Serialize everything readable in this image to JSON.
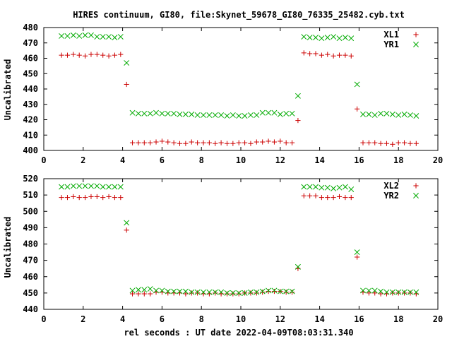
{
  "figure": {
    "title": "HIRES continuum, GI80, file:Skynet_59678_GI80_76335_25482.cyb.txt",
    "xlabel": "rel seconds : UT date 2022-04-09T08:03:31.340"
  },
  "chart_data": [
    {
      "type": "scatter",
      "ylabel": "Uncalibrated",
      "xlim": [
        0,
        20
      ],
      "ylim": [
        400,
        480
      ],
      "xticks": [
        "0",
        "2",
        "4",
        "6",
        "8",
        "10",
        "12",
        "14",
        "16",
        "18",
        "20"
      ],
      "yticks": [
        "400",
        "410",
        "420",
        "430",
        "440",
        "450",
        "460",
        "470",
        "480"
      ],
      "legend_position": "top-right",
      "series": [
        {
          "name": "XL1",
          "marker": "plus",
          "color": "#cc0000",
          "x": [
            0.9,
            1.2,
            1.5,
            1.8,
            2.1,
            2.4,
            2.7,
            3.0,
            3.3,
            3.6,
            3.9,
            4.2,
            4.5,
            4.8,
            5.1,
            5.4,
            5.7,
            6.0,
            6.3,
            6.6,
            6.9,
            7.2,
            7.5,
            7.8,
            8.1,
            8.4,
            8.7,
            9.0,
            9.3,
            9.6,
            9.9,
            10.2,
            10.5,
            10.8,
            11.1,
            11.4,
            11.7,
            12.0,
            12.3,
            12.6,
            12.9,
            13.2,
            13.5,
            13.8,
            14.1,
            14.4,
            14.7,
            15.0,
            15.3,
            15.6,
            15.9,
            16.2,
            16.5,
            16.8,
            17.1,
            17.4,
            17.7,
            18.0,
            18.3,
            18.6,
            18.9
          ],
          "y": [
            462,
            462,
            462.5,
            462,
            461.5,
            462.5,
            462.5,
            462,
            461.5,
            462,
            462.5,
            443,
            405,
            405,
            405,
            405,
            405.5,
            406,
            405.5,
            405,
            404.5,
            404.5,
            405.5,
            405,
            405,
            405,
            404.5,
            405,
            404.5,
            404.5,
            405,
            405,
            404.5,
            405.5,
            405.5,
            406,
            405.5,
            406,
            405,
            405,
            419.5,
            463.5,
            463,
            463,
            462,
            462.5,
            461.5,
            462,
            462,
            461.5,
            427,
            405,
            405,
            405,
            404.5,
            404.5,
            404,
            405,
            405,
            404.5,
            404.5
          ]
        },
        {
          "name": "YR1",
          "marker": "cross",
          "color": "#00aa00",
          "x": [
            0.9,
            1.2,
            1.5,
            1.8,
            2.1,
            2.4,
            2.7,
            3.0,
            3.3,
            3.6,
            3.9,
            4.2,
            4.5,
            4.8,
            5.1,
            5.4,
            5.7,
            6.0,
            6.3,
            6.6,
            6.9,
            7.2,
            7.5,
            7.8,
            8.1,
            8.4,
            8.7,
            9.0,
            9.3,
            9.6,
            9.9,
            10.2,
            10.5,
            10.8,
            11.1,
            11.4,
            11.7,
            12.0,
            12.3,
            12.6,
            12.9,
            13.2,
            13.5,
            13.8,
            14.1,
            14.4,
            14.7,
            15.0,
            15.3,
            15.6,
            15.9,
            16.2,
            16.5,
            16.8,
            17.1,
            17.4,
            17.7,
            18.0,
            18.3,
            18.6,
            18.9
          ],
          "y": [
            474.5,
            474.5,
            475,
            474.5,
            475,
            475,
            474,
            474,
            474,
            473.5,
            474,
            457,
            424.5,
            424,
            424,
            424,
            424.5,
            424,
            424,
            424,
            423.5,
            423.5,
            423.5,
            423,
            423,
            423,
            423,
            423,
            422.5,
            423,
            422.5,
            422.5,
            423,
            423,
            424.5,
            424.5,
            424.5,
            423.5,
            424,
            424,
            435.5,
            474,
            473.5,
            473.5,
            473,
            473.5,
            474,
            473,
            473.5,
            473,
            443,
            423.5,
            423.5,
            423,
            424,
            424,
            423.5,
            423,
            423.5,
            423,
            422.5
          ]
        }
      ]
    },
    {
      "type": "scatter",
      "ylabel": "Uncalibrated",
      "xlim": [
        0,
        20
      ],
      "ylim": [
        440,
        520
      ],
      "xticks": [
        "0",
        "2",
        "4",
        "6",
        "8",
        "10",
        "12",
        "14",
        "16",
        "18",
        "20"
      ],
      "yticks": [
        "440",
        "450",
        "460",
        "470",
        "480",
        "490",
        "500",
        "510",
        "520"
      ],
      "legend_position": "top-right",
      "series": [
        {
          "name": "XL2",
          "marker": "plus",
          "color": "#cc0000",
          "x": [
            0.9,
            1.2,
            1.5,
            1.8,
            2.1,
            2.4,
            2.7,
            3.0,
            3.3,
            3.6,
            3.9,
            4.2,
            4.5,
            4.8,
            5.1,
            5.4,
            5.7,
            6.0,
            6.3,
            6.6,
            6.9,
            7.2,
            7.5,
            7.8,
            8.1,
            8.4,
            8.7,
            9.0,
            9.3,
            9.6,
            9.9,
            10.2,
            10.5,
            10.8,
            11.1,
            11.4,
            11.7,
            12.0,
            12.3,
            12.6,
            12.9,
            13.2,
            13.5,
            13.8,
            14.1,
            14.4,
            14.7,
            15.0,
            15.3,
            15.6,
            15.9,
            16.2,
            16.5,
            16.8,
            17.1,
            17.4,
            17.7,
            18.0,
            18.3,
            18.6,
            18.9
          ],
          "y": [
            508.5,
            508.5,
            509,
            508.5,
            508.5,
            509,
            509,
            508.5,
            509,
            508.5,
            508.5,
            488.5,
            449.5,
            449.5,
            449.5,
            449.5,
            450.5,
            450.5,
            450,
            450,
            450,
            449.5,
            450,
            450,
            449.5,
            449.5,
            450,
            449.5,
            449.5,
            449.5,
            449.5,
            450,
            450,
            450,
            450.5,
            451,
            451,
            451,
            450.5,
            450.5,
            465,
            509.5,
            509.5,
            509.5,
            508.5,
            508.5,
            508.5,
            509,
            508.5,
            508.5,
            472,
            450.5,
            450,
            450,
            449.5,
            449.5,
            450,
            450,
            450,
            450,
            449.5
          ]
        },
        {
          "name": "YR2",
          "marker": "cross",
          "color": "#00aa00",
          "x": [
            0.9,
            1.2,
            1.5,
            1.8,
            2.1,
            2.4,
            2.7,
            3.0,
            3.3,
            3.6,
            3.9,
            4.2,
            4.5,
            4.8,
            5.1,
            5.4,
            5.7,
            6.0,
            6.3,
            6.6,
            6.9,
            7.2,
            7.5,
            7.8,
            8.1,
            8.4,
            8.7,
            9.0,
            9.3,
            9.6,
            9.9,
            10.2,
            10.5,
            10.8,
            11.1,
            11.4,
            11.7,
            12.0,
            12.3,
            12.6,
            12.9,
            13.2,
            13.5,
            13.8,
            14.1,
            14.4,
            14.7,
            15.0,
            15.3,
            15.6,
            15.9,
            16.2,
            16.5,
            16.8,
            17.1,
            17.4,
            17.7,
            18.0,
            18.3,
            18.6,
            18.9
          ],
          "y": [
            515,
            515,
            515.5,
            515.5,
            515.5,
            515.5,
            515.5,
            515,
            515,
            515,
            515,
            493,
            451.5,
            452,
            452,
            452.5,
            451.5,
            451.5,
            451,
            451,
            451,
            451,
            450.5,
            450.5,
            450.5,
            450.5,
            450.5,
            450.5,
            450,
            450,
            450,
            450,
            450.5,
            450.5,
            451,
            451.5,
            451.5,
            451,
            451,
            451,
            466,
            515,
            515,
            515,
            514.5,
            514.5,
            514,
            514.5,
            515,
            513.5,
            475,
            451.5,
            451.5,
            451.5,
            451,
            450.5,
            450.5,
            450.5,
            450.5,
            450.5,
            450.5
          ]
        }
      ]
    }
  ]
}
